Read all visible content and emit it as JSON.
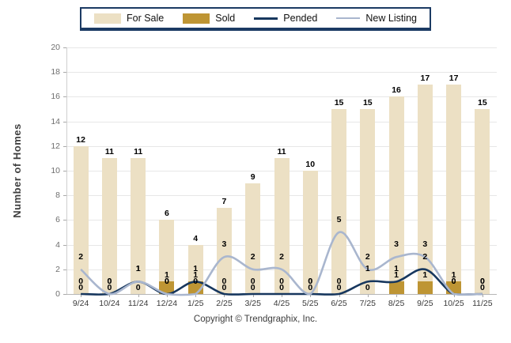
{
  "legend": {
    "items": [
      {
        "label": "For Sale",
        "type": "bar",
        "color": "#ECE0C4"
      },
      {
        "label": "Sold",
        "type": "bar",
        "color": "#BE9534"
      },
      {
        "label": "Pended",
        "type": "line",
        "color": "#17375E"
      },
      {
        "label": "New Listing",
        "type": "line",
        "color": "#A9B6CE"
      }
    ]
  },
  "y_axis": {
    "title": "Number of Homes",
    "ticks": [
      0,
      2,
      4,
      6,
      8,
      10,
      12,
      14,
      16,
      18,
      20
    ]
  },
  "footer": {
    "copyright": "Copyright © Trendgraphix, Inc."
  },
  "chart_data": {
    "type": "bar",
    "subtype": "bars-with-overlaid-lines",
    "categories": [
      "9/24",
      "10/24",
      "11/24",
      "12/24",
      "1/25",
      "2/25",
      "3/25",
      "4/25",
      "5/25",
      "6/25",
      "7/25",
      "8/25",
      "9/25",
      "10/25",
      "11/25"
    ],
    "series": [
      {
        "name": "For Sale",
        "type": "bar",
        "color": "#ECE0C4",
        "values": [
          12,
          11,
          11,
          6,
          4,
          7,
          9,
          11,
          10,
          15,
          15,
          16,
          17,
          17,
          15
        ]
      },
      {
        "name": "Sold",
        "type": "bar",
        "color": "#BE9534",
        "values": [
          0,
          0,
          0,
          1,
          1,
          0,
          0,
          0,
          0,
          0,
          0,
          1,
          1,
          1,
          0
        ]
      },
      {
        "name": "Pended",
        "type": "line",
        "color": "#17375E",
        "values": [
          0,
          0,
          1,
          0,
          1,
          0,
          0,
          0,
          0,
          0,
          1,
          1,
          2,
          0,
          0
        ]
      },
      {
        "name": "New Listing",
        "type": "line",
        "color": "#A9B6CE",
        "values": [
          2,
          0,
          1,
          0,
          0,
          3,
          2,
          2,
          0,
          5,
          2,
          3,
          3,
          0,
          0
        ]
      }
    ],
    "title": "",
    "xlabel": "",
    "ylabel": "Number of Homes",
    "ylim": [
      0,
      20
    ],
    "grid": true,
    "legend_position": "top",
    "data_labels": true
  }
}
